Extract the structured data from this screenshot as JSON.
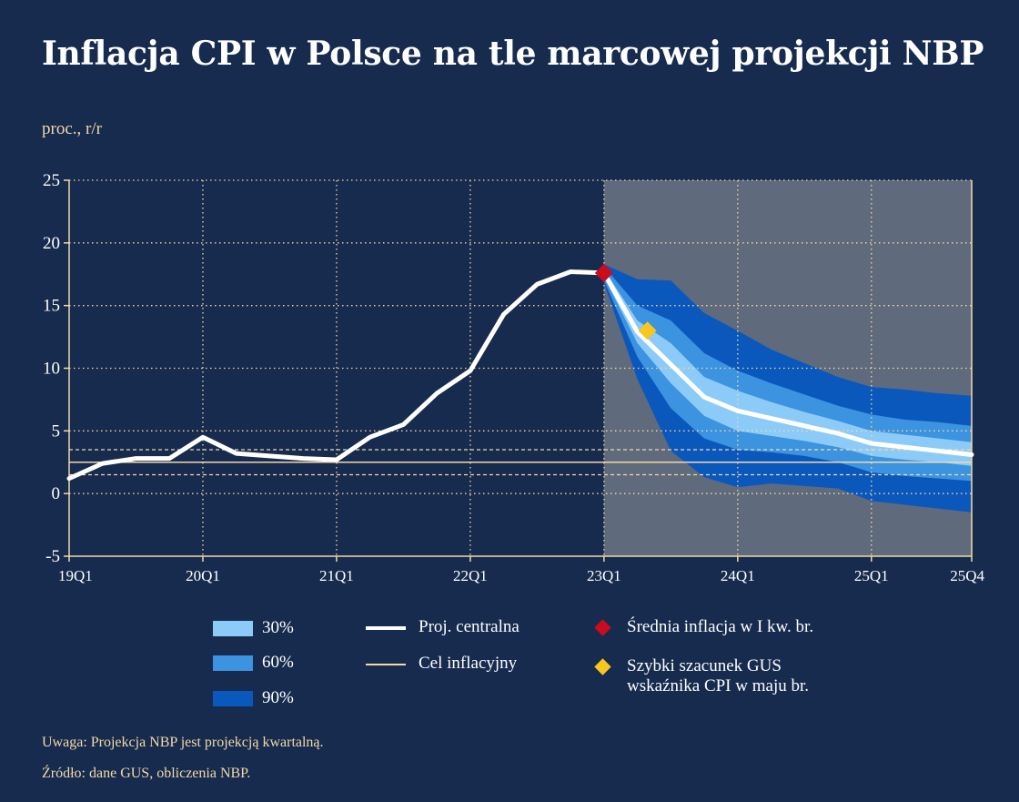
{
  "title": "Inflacja CPI w Polsce na tle marcowej projekcji NBP",
  "unit_label": "proc., r/r",
  "colors": {
    "background": "#172b4f",
    "projection_bg": "#5f6b7c",
    "band_30": "#8ccbf7",
    "band_60": "#3c93df",
    "band_90": "#0b58bd",
    "central_line": "#ffffff",
    "target_line": "#f2d9a6",
    "grid": "#f2d9a6",
    "avg_marker": "#cc0b1f",
    "flash_marker": "#f6c71e"
  },
  "legend": {
    "band_30": "30%",
    "band_60": "60%",
    "band_90": "90%",
    "central": "Proj. centralna",
    "target": "Cel inflacyjny",
    "avg_q1": "Średnia inflacja w I kw. br.",
    "flash_line1": "Szybki szacunek GUS",
    "flash_line2": "wskaźnika CPI w maju br."
  },
  "notes": {
    "note": "Uwaga: Projekcja NBP jest projekcją kwartalną.",
    "source": "Źródło: dane GUS, obliczenia NBP."
  },
  "chart_data": {
    "type": "line",
    "ylim": [
      -5,
      25
    ],
    "y_ticks": [
      25,
      20,
      15,
      10,
      5,
      0,
      -5
    ],
    "x_range": [
      0,
      27
    ],
    "x_ticks": [
      {
        "x": 0,
        "label": "19Q1"
      },
      {
        "x": 4,
        "label": "20Q1"
      },
      {
        "x": 8,
        "label": "21Q1"
      },
      {
        "x": 12,
        "label": "22Q1"
      },
      {
        "x": 16,
        "label": "23Q1"
      },
      {
        "x": 20,
        "label": "24Q1"
      },
      {
        "x": 24,
        "label": "25Q1"
      },
      {
        "x": 27,
        "label": "25Q4"
      }
    ],
    "projection_start": 16,
    "target": 2.5,
    "tolerance_band": [
      1.5,
      3.5
    ],
    "grid": true,
    "series": [
      {
        "name": "Proj. centralna",
        "x": [
          0,
          1,
          2,
          3,
          4,
          5,
          6,
          7,
          8,
          9,
          10,
          11,
          12,
          13,
          14,
          15,
          16,
          17,
          18,
          19,
          20,
          21,
          22,
          23,
          24,
          25,
          26,
          27
        ],
        "values": [
          1.2,
          2.4,
          2.8,
          2.8,
          4.5,
          3.2,
          3.0,
          2.8,
          2.7,
          4.5,
          5.5,
          8.0,
          9.8,
          14.3,
          16.7,
          17.7,
          17.6,
          12.9,
          10.3,
          7.7,
          6.6,
          6.0,
          5.4,
          4.8,
          4.0,
          3.7,
          3.4,
          3.1
        ]
      }
    ],
    "fan_bands": {
      "x": [
        16,
        17,
        18,
        19,
        20,
        21,
        22,
        23,
        24,
        25,
        26,
        27
      ],
      "p90_upper": [
        18.3,
        17.1,
        17.0,
        14.4,
        13.0,
        11.5,
        10.4,
        9.3,
        8.5,
        8.3,
        8.0,
        7.8
      ],
      "p60_upper": [
        18.1,
        15.0,
        13.8,
        11.2,
        9.8,
        8.8,
        7.9,
        7.0,
        6.3,
        5.9,
        5.7,
        5.4
      ],
      "p30_upper": [
        17.9,
        13.8,
        12.0,
        9.3,
        8.2,
        7.3,
        6.5,
        5.8,
        5.0,
        4.7,
        4.4,
        4.1
      ],
      "p30_lower": [
        17.3,
        12.0,
        8.8,
        6.2,
        5.0,
        4.6,
        4.2,
        3.7,
        3.0,
        2.7,
        2.5,
        2.2
      ],
      "p60_lower": [
        17.0,
        10.9,
        6.8,
        4.4,
        3.5,
        3.3,
        3.0,
        2.5,
        1.7,
        1.4,
        1.2,
        1.0
      ],
      "p90_lower": [
        16.8,
        9.1,
        3.4,
        1.3,
        0.5,
        0.8,
        0.6,
        0.4,
        -0.6,
        -0.9,
        -1.2,
        -1.5
      ]
    },
    "markers": [
      {
        "name": "Średnia inflacja w I kw. br.",
        "x": 16,
        "y": 17.6
      },
      {
        "name": "Szybki szacunek GUS wskaźnika CPI w maju br.",
        "x": 17.3,
        "y": 13.0
      }
    ]
  }
}
